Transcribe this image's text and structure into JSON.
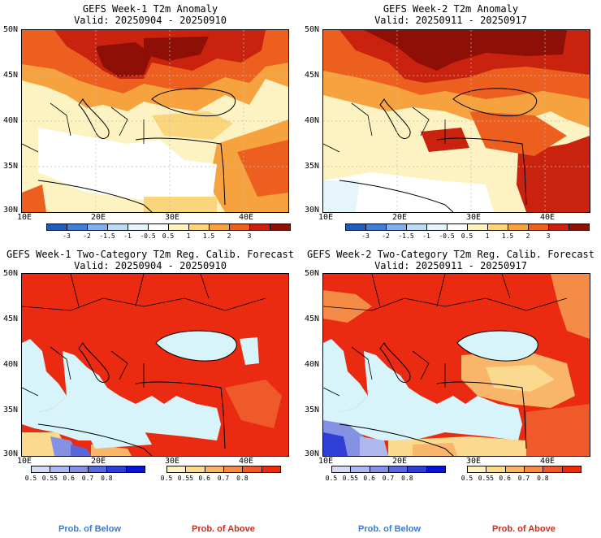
{
  "panels": [
    {
      "title1": "GEFS Week-1 T2m Anomaly",
      "title2": "Valid: 20250904 - 20250910"
    },
    {
      "title1": "GEFS Week-2 T2m Anomaly",
      "title2": "Valid: 20250911 - 20250917"
    },
    {
      "title1": "GEFS Week-1 Two-Category T2m Reg. Calib. Forecast",
      "title2": "Valid: 20250904 - 20250910"
    },
    {
      "title1": "GEFS Week-2 Two-Category T2m Reg. Calib. Forecast",
      "title2": "Valid: 20250911 - 20250917"
    }
  ],
  "axes": {
    "lat_labels": [
      "50N",
      "45N",
      "40N",
      "35N",
      "30N"
    ],
    "lon_labels": [
      "10E",
      "20E",
      "30E",
      "40E"
    ]
  },
  "anomaly_colorbar": {
    "labels": [
      "-3",
      "-2",
      "-1.5",
      "-1",
      "-0.5",
      "0.5",
      "1",
      "1.5",
      "2",
      "3"
    ],
    "colors": [
      "#1f5bb8",
      "#3f7fd6",
      "#7fb0ea",
      "#bcdcf6",
      "#e6f4fb",
      "#ffffff",
      "#fdf3c2",
      "#fbd57c",
      "#f6a33f",
      "#ec5f1e",
      "#c9230f",
      "#8e0f06"
    ]
  },
  "prob_colorbar_below": {
    "labels": [
      "0.5",
      "0.55",
      "0.6",
      "0.7",
      "0.8"
    ],
    "colors": [
      "#d6dcf4",
      "#aeb8ec",
      "#8592e4",
      "#5a68dc",
      "#2f3fd6",
      "#0b12d8"
    ]
  },
  "prob_colorbar_above": {
    "labels": [
      "0.5",
      "0.55",
      "0.6",
      "0.7",
      "0.8"
    ],
    "colors": [
      "#fdf1c2",
      "#fbd98e",
      "#f9b56a",
      "#f48c48",
      "#ef5a2a",
      "#ea2b12"
    ]
  },
  "legend": {
    "below": "Prob. of Below",
    "above": "Prob. of Above",
    "below_color": "#3a7bd5",
    "above_color": "#d22a1a"
  },
  "colors": {
    "sea_prob": "#d6f4fa"
  }
}
